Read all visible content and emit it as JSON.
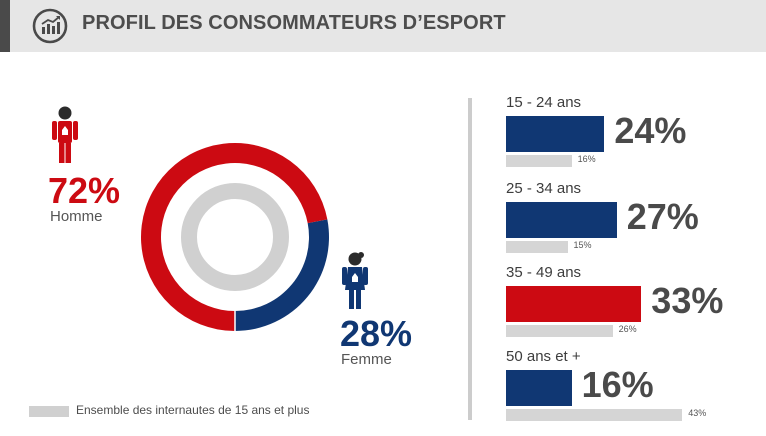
{
  "header": {
    "title": "PROFIL DES CONSOMMATEURS D’ESPORT"
  },
  "icons": {
    "header": "analytics-chart-icon",
    "male": "male-person-icon",
    "female": "female-person-icon"
  },
  "colors": {
    "red": "#cc0a12",
    "navy": "#103773",
    "gray": "#d0d0d0",
    "text_dark": "#4a4a4a"
  },
  "gender": {
    "male": {
      "value_text": "72%",
      "label": "Homme"
    },
    "female": {
      "value_text": "28%",
      "label": "Femme"
    }
  },
  "legend": {
    "label": "Ensemble des internautes de 15 ans et plus"
  },
  "chart_data": [
    {
      "type": "pie",
      "labels": [
        "Homme",
        "Femme"
      ],
      "values": [
        72,
        28
      ],
      "colors": [
        "#cc0a12",
        "#103773"
      ],
      "inner_ring": {
        "label": "Ensemble des internautes de 15 ans et plus"
      }
    },
    {
      "type": "bar",
      "categories": [
        "15 - 24 ans",
        "25 - 34 ans",
        "35 - 49 ans",
        "50 ans et +"
      ],
      "series": [
        {
          "values": [
            24,
            27,
            33,
            16
          ],
          "labels": [
            "24%",
            "27%",
            "33%",
            "16%"
          ],
          "colors": [
            "#103773",
            "#103773",
            "#cc0a12",
            "#103773"
          ]
        },
        {
          "name": "Ensemble des internautes de 15 ans et plus",
          "values": [
            16,
            15,
            26,
            43
          ],
          "labels": [
            "16%",
            "15%",
            "26%",
            "43%"
          ],
          "color": "#d5d5d5"
        }
      ]
    }
  ]
}
